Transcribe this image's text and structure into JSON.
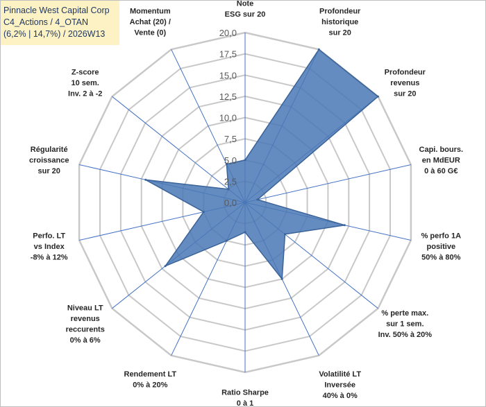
{
  "header": {
    "line1": "Pinnacle West Capital Corp",
    "line2": "C4_Actions / 4_OTAN",
    "line3": "(6,2% | 14,7%) / 2026W13"
  },
  "colors": {
    "fill": "#4a78b5",
    "stroke": "#3a6399",
    "grid": "#c8c8c8",
    "spoke": "#4472c4",
    "header_bg": "#fdf2c4"
  },
  "chart_data": {
    "type": "radar",
    "rmax": 20,
    "tick_step": 2.5,
    "ticks": [
      "0,0",
      "2,5",
      "5,0",
      "7,5",
      "10,0",
      "12,5",
      "15,0",
      "17,5",
      "20,0"
    ],
    "categories": [
      [
        "Note",
        "ESG sur 20"
      ],
      [
        "Profondeur",
        "historique",
        "sur 20"
      ],
      [
        "Profondeur",
        "revenus",
        "sur 20"
      ],
      [
        "Capi. bours.",
        "en MdEUR",
        "0 à 60 G€"
      ],
      [
        "% perfo 1A",
        "positive",
        "50% à 80%"
      ],
      [
        "% perte max.",
        "sur 1 sem.",
        "Inv. 50% à 20%"
      ],
      [
        "Volatilité LT",
        "Inversée",
        "40% à 0%"
      ],
      [
        "Ratio Sharpe",
        "0 à 1"
      ],
      [
        "Rendement LT",
        "0% à 20%"
      ],
      [
        "Niveau LT",
        "revenus",
        "reccurents",
        "0% à 6%"
      ],
      [
        "Perfo. LT",
        "vs Index",
        "-8% à 12%"
      ],
      [
        "Régularité",
        "croissance",
        "sur 20"
      ],
      [
        "Z-score",
        "10 sem.",
        "Inv. 2 à -2"
      ],
      [
        "Momentum",
        "Achat (20) /",
        "Vente (0)"
      ]
    ],
    "values": [
      5,
      20,
      20,
      1.5,
      12,
      6,
      10,
      3.5,
      5,
      12,
      5,
      12,
      2.5,
      5
    ]
  }
}
